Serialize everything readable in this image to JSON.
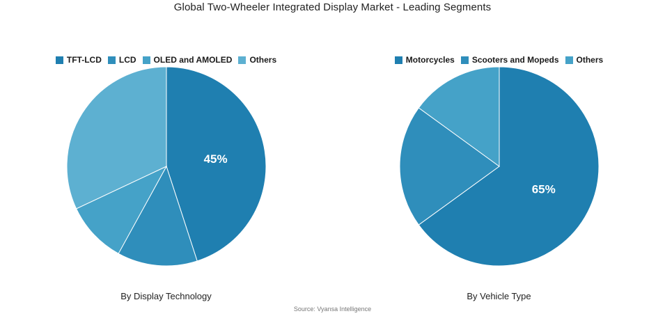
{
  "title": "Global Two-Wheeler Integrated Display Market - Leading Segments",
  "source": "Source: Vyansa Intelligence",
  "chart_data": [
    {
      "type": "pie",
      "subtitle": "By Display Technology",
      "legend_position": "top",
      "categories": [
        "TFT-LCD",
        "LCD",
        "OLED and AMOLED",
        "Others"
      ],
      "values": [
        45,
        13,
        10,
        32
      ],
      "colors": [
        "#1f7fb0",
        "#2f8ebb",
        "#45a2c8",
        "#5db0d1"
      ],
      "labels": [
        "45%",
        "",
        "",
        ""
      ]
    },
    {
      "type": "pie",
      "subtitle": "By Vehicle Type",
      "legend_position": "top",
      "categories": [
        "Motorcycles",
        "Scooters and Mopeds",
        "Others"
      ],
      "values": [
        65,
        20,
        15
      ],
      "colors": [
        "#1f7fb0",
        "#2f8ebb",
        "#45a2c8"
      ],
      "labels": [
        "65%",
        "",
        ""
      ]
    }
  ]
}
